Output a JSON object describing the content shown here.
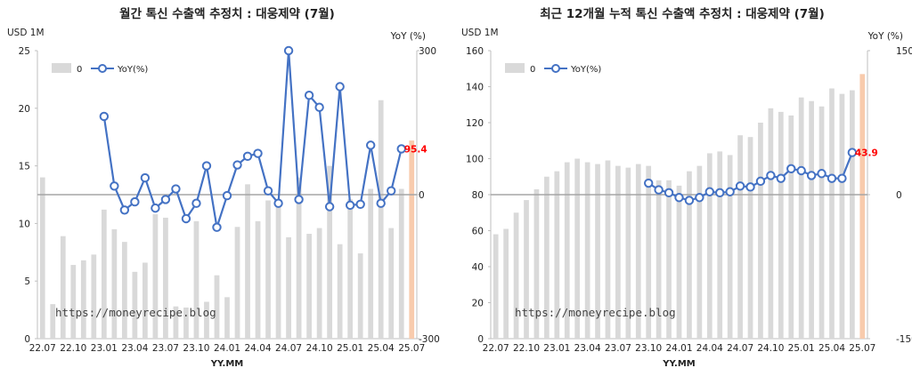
{
  "colors": {
    "bar": "#d9d9d9",
    "bar_highlight": "#f8cbad",
    "line": "#4472c4",
    "marker_fill": "#ffffff",
    "last_label": "#ff0000",
    "zero_line": "#a6a6a6",
    "axis": "#bfbfbf"
  },
  "watermark": "https://moneyrecipe.blog",
  "chart_data": [
    {
      "type": "bar",
      "title": "월간 톡신 수출액 추정치 : 대웅제약 (7월)",
      "y_unit_label": "USD 1M",
      "y2_unit_label": "YoY (%)",
      "xlabel": "YY.MM",
      "legend": [
        "0",
        "YoY(%)"
      ],
      "legend_position": "top-left",
      "ylim": [
        0,
        25
      ],
      "yticks": [
        0,
        5,
        10,
        15,
        20,
        25
      ],
      "y2lim": [
        -300,
        300
      ],
      "y2ticks": [
        -300,
        0,
        300
      ],
      "xtick_labels": [
        "22.07",
        "22.10",
        "23.01",
        "23.04",
        "23.07",
        "23.10",
        "24.01",
        "24.04",
        "24.07",
        "24.10",
        "25.01",
        "25.04",
        "25.07"
      ],
      "categories": [
        "22.07",
        "22.08",
        "22.09",
        "22.10",
        "22.11",
        "22.12",
        "23.01",
        "23.02",
        "23.03",
        "23.04",
        "23.05",
        "23.06",
        "23.07",
        "23.08",
        "23.09",
        "23.10",
        "23.11",
        "23.12",
        "24.01",
        "24.02",
        "24.03",
        "24.04",
        "24.05",
        "24.06",
        "24.07",
        "24.08",
        "24.09",
        "24.10",
        "24.11",
        "24.12",
        "25.01",
        "25.02",
        "25.03",
        "25.04",
        "25.05",
        "25.06",
        "25.07"
      ],
      "series": [
        {
          "name": "0",
          "kind": "bar",
          "axis": "left",
          "values": [
            14.0,
            3.0,
            8.9,
            6.4,
            6.8,
            7.3,
            11.2,
            9.5,
            8.4,
            5.8,
            6.6,
            10.8,
            10.5,
            2.8,
            2.7,
            10.2,
            3.2,
            5.5,
            3.6,
            9.7,
            13.4,
            10.2,
            12.0,
            11.9,
            8.8,
            14.0,
            9.1,
            9.6,
            15.0,
            8.2,
            12.1,
            7.4,
            13.0,
            20.7,
            9.6,
            13.0,
            17.2
          ]
        },
        {
          "name": "YoY(%)",
          "kind": "line",
          "axis": "right",
          "values": [
            null,
            null,
            null,
            null,
            null,
            null,
            163,
            18,
            -32,
            -15,
            35,
            -28,
            -10,
            12,
            -50,
            -18,
            60,
            -68,
            -2,
            62,
            80,
            86,
            8,
            -18,
            320,
            -10,
            207,
            182,
            -25,
            225,
            -22,
            -20,
            103,
            -18,
            8,
            95.4,
            null
          ],
          "last_label": "95.4"
        }
      ]
    },
    {
      "type": "bar",
      "title": "최근 12개월 누적 톡신 수출액 추정치 : 대웅제약 (7월)",
      "y_unit_label": "USD 1M",
      "y2_unit_label": "YoY (%)",
      "xlabel": "YY.MM",
      "legend": [
        "0",
        "YoY(%)"
      ],
      "legend_position": "top-left",
      "ylim": [
        0,
        160
      ],
      "yticks": [
        0,
        20,
        40,
        60,
        80,
        100,
        120,
        140,
        160
      ],
      "y2lim": [
        -150,
        150
      ],
      "y2ticks": [
        -150,
        0,
        150
      ],
      "xtick_labels": [
        "22.07",
        "22.10",
        "23.01",
        "23.04",
        "23.07",
        "23.10",
        "24.01",
        "24.04",
        "24.07",
        "24.10",
        "25.01",
        "25.04",
        "25.07"
      ],
      "categories": [
        "22.07",
        "22.08",
        "22.09",
        "22.10",
        "22.11",
        "22.12",
        "23.01",
        "23.02",
        "23.03",
        "23.04",
        "23.05",
        "23.06",
        "23.07",
        "23.08",
        "23.09",
        "23.10",
        "23.11",
        "23.12",
        "24.01",
        "24.02",
        "24.03",
        "24.04",
        "24.05",
        "24.06",
        "24.07",
        "24.08",
        "24.09",
        "24.10",
        "24.11",
        "24.12",
        "25.01",
        "25.02",
        "25.03",
        "25.04",
        "25.05",
        "25.06",
        "25.07"
      ],
      "series": [
        {
          "name": "0",
          "kind": "bar",
          "axis": "left",
          "values": [
            58,
            61,
            70,
            77,
            83,
            90,
            93,
            98,
            100,
            98,
            97,
            99,
            96,
            95,
            97,
            96,
            88,
            88,
            85,
            93,
            96,
            103,
            104,
            102,
            113,
            112,
            120,
            128,
            126,
            124,
            134,
            132,
            129,
            139,
            136,
            138,
            147
          ]
        },
        {
          "name": "YoY(%)",
          "kind": "line",
          "axis": "right",
          "values": [
            null,
            null,
            null,
            null,
            null,
            null,
            null,
            null,
            null,
            null,
            null,
            null,
            null,
            null,
            null,
            12,
            5,
            2,
            -3,
            -6,
            -3,
            3,
            2,
            3,
            9,
            8,
            14,
            20,
            17,
            27,
            25,
            20,
            22,
            17,
            17,
            43.9,
            null
          ],
          "last_label": "43.9"
        }
      ]
    }
  ]
}
